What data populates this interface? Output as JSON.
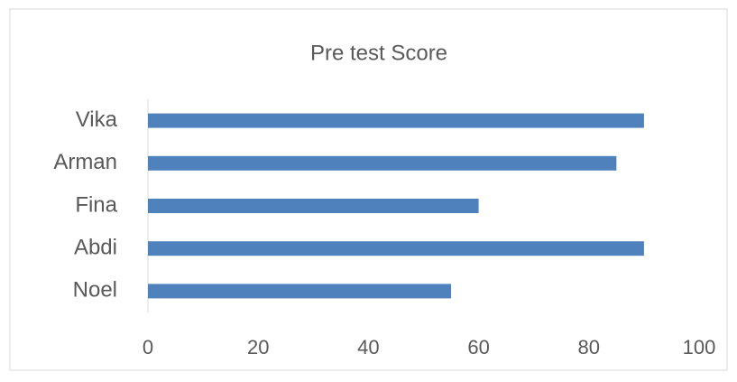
{
  "chart_data": {
    "type": "bar",
    "orientation": "horizontal",
    "title": "Pre test Score",
    "categories": [
      "Vika",
      "Arman",
      "Fina",
      "Abdi",
      "Noel"
    ],
    "values": [
      90,
      85,
      60,
      90,
      55
    ],
    "color": "#4f81bd",
    "xlim": [
      0,
      100
    ],
    "xticks": [
      0,
      20,
      40,
      60,
      80,
      100
    ],
    "grid": false
  }
}
